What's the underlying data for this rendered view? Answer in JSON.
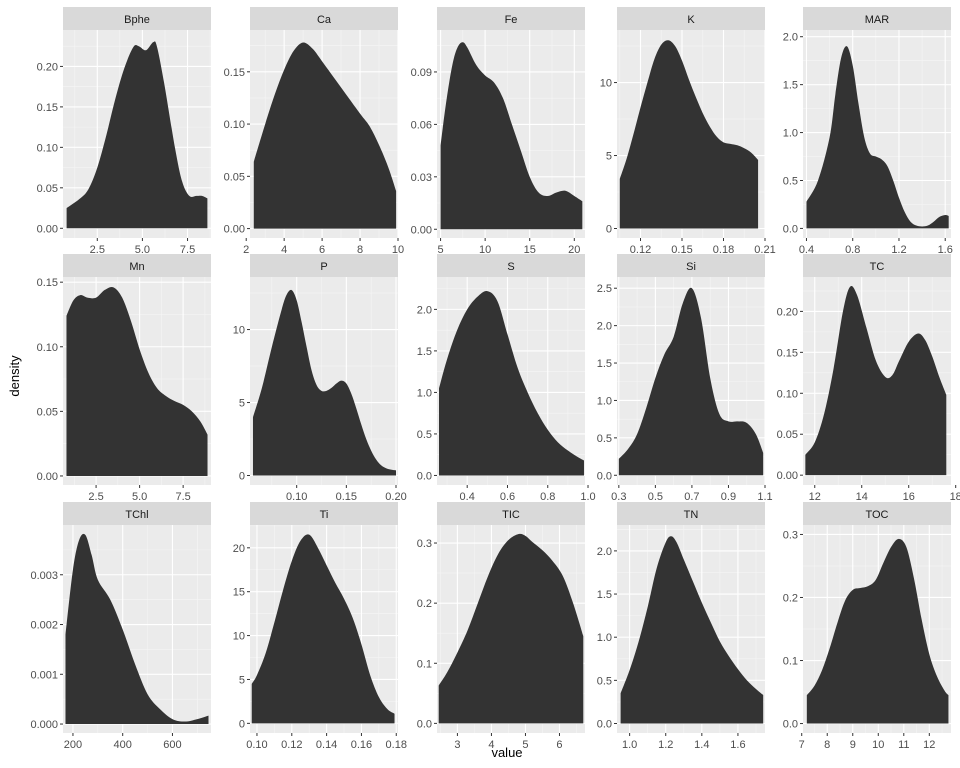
{
  "chart_data": {
    "type": "area",
    "chart_kind": "faceted density plot",
    "xlabel": "value",
    "ylabel": "density",
    "grid": true,
    "colors": {
      "panel_bg": "#ebebeb",
      "grid_major": "#ffffff",
      "grid_minor": "#f5f5f5",
      "strip_bg": "#d9d9d9",
      "fill": "#333333",
      "tick_text": "#4d4d4d",
      "tick_mark": "#333333"
    },
    "panels": [
      {
        "name": "Bphe",
        "xlim": [
          0.6,
          8.8
        ],
        "ylim": [
          -0.012,
          0.245
        ],
        "xticks": [
          2.5,
          5.0,
          7.5
        ],
        "xtick_labels": [
          "2.5",
          "5.0",
          "7.5"
        ],
        "yticks": [
          0,
          0.05,
          0.1,
          0.15,
          0.2
        ],
        "ytick_labels": [
          "0.00",
          "0.05",
          "0.10",
          "0.15",
          "0.20"
        ],
        "x": [
          0.8,
          1.5,
          2.0,
          2.5,
          3.0,
          3.5,
          4.0,
          4.5,
          4.8,
          5.2,
          5.6,
          5.8,
          6.2,
          6.8,
          7.2,
          7.6,
          8.0,
          8.3,
          8.6
        ],
        "y": [
          0.025,
          0.036,
          0.048,
          0.075,
          0.115,
          0.16,
          0.198,
          0.224,
          0.225,
          0.22,
          0.23,
          0.225,
          0.18,
          0.1,
          0.058,
          0.04,
          0.04,
          0.04,
          0.037
        ]
      },
      {
        "name": "Ca",
        "xlim": [
          2.2,
          10.0
        ],
        "ylim": [
          -0.009,
          0.19
        ],
        "xticks": [
          2,
          4,
          6,
          8,
          10
        ],
        "xtick_labels": [
          "2",
          "4",
          "6",
          "8",
          "10"
        ],
        "yticks": [
          0,
          0.05,
          0.1,
          0.15
        ],
        "ytick_labels": [
          "0.00",
          "0.05",
          "0.10",
          "0.15"
        ],
        "x": [
          2.4,
          3.0,
          3.5,
          4.0,
          4.5,
          5.0,
          5.5,
          6.0,
          7.0,
          8.0,
          8.5,
          9.0,
          9.5,
          9.9
        ],
        "y": [
          0.064,
          0.1,
          0.128,
          0.152,
          0.17,
          0.178,
          0.172,
          0.16,
          0.135,
          0.11,
          0.098,
          0.08,
          0.058,
          0.036
        ]
      },
      {
        "name": "Fe",
        "xlim": [
          4.6,
          21.2
        ],
        "ylim": [
          -0.005,
          0.114
        ],
        "xticks": [
          5,
          10,
          15,
          20
        ],
        "xtick_labels": [
          "5",
          "10",
          "15",
          "20"
        ],
        "yticks": [
          0,
          0.03,
          0.06,
          0.09
        ],
        "ytick_labels": [
          "0.00",
          "0.03",
          "0.06",
          "0.09"
        ],
        "x": [
          5.0,
          5.5,
          6.0,
          6.5,
          7.0,
          7.5,
          8.0,
          9.0,
          10.0,
          11.0,
          12.0,
          13.0,
          14.0,
          15.0,
          16.0,
          17.0,
          18.0,
          19.0,
          20.0,
          20.9
        ],
        "y": [
          0.048,
          0.068,
          0.085,
          0.098,
          0.105,
          0.107,
          0.104,
          0.094,
          0.088,
          0.084,
          0.075,
          0.06,
          0.045,
          0.03,
          0.021,
          0.019,
          0.021,
          0.022,
          0.019,
          0.016
        ]
      },
      {
        "name": "K",
        "xlim": [
          0.103,
          0.21
        ],
        "ylim": [
          -0.65,
          13.6
        ],
        "xticks": [
          0.12,
          0.15,
          0.18,
          0.21
        ],
        "xtick_labels": [
          "0.12",
          "0.15",
          "0.18",
          "0.21"
        ],
        "yticks": [
          0,
          5,
          10
        ],
        "ytick_labels": [
          "0",
          "5",
          "10"
        ],
        "x": [
          0.105,
          0.11,
          0.115,
          0.12,
          0.125,
          0.13,
          0.135,
          0.14,
          0.145,
          0.15,
          0.155,
          0.16,
          0.165,
          0.17,
          0.175,
          0.18,
          0.185,
          0.19,
          0.195,
          0.2,
          0.205
        ],
        "y": [
          3.4,
          4.8,
          6.5,
          8.3,
          10.0,
          11.6,
          12.6,
          12.9,
          12.5,
          11.5,
          10.2,
          9.0,
          7.9,
          7.0,
          6.3,
          5.9,
          5.8,
          5.7,
          5.5,
          5.2,
          4.7
        ]
      },
      {
        "name": "MAR",
        "xlim": [
          0.37,
          1.65
        ],
        "ylim": [
          -0.1,
          2.07
        ],
        "xticks": [
          0.4,
          0.8,
          1.2,
          1.6
        ],
        "xtick_labels": [
          "0.4",
          "0.8",
          "1.2",
          "1.6"
        ],
        "yticks": [
          0,
          0.5,
          1.0,
          1.5,
          2.0
        ],
        "ytick_labels": [
          "0.0",
          "0.5",
          "1.0",
          "1.5",
          "2.0"
        ],
        "x": [
          0.4,
          0.5,
          0.6,
          0.65,
          0.7,
          0.75,
          0.8,
          0.85,
          0.9,
          0.95,
          1.0,
          1.05,
          1.1,
          1.15,
          1.2,
          1.25,
          1.3,
          1.35,
          1.4,
          1.45,
          1.5,
          1.55,
          1.6,
          1.63
        ],
        "y": [
          0.28,
          0.5,
          0.95,
          1.4,
          1.78,
          1.9,
          1.7,
          1.3,
          0.95,
          0.78,
          0.75,
          0.72,
          0.65,
          0.5,
          0.32,
          0.17,
          0.07,
          0.03,
          0.02,
          0.03,
          0.07,
          0.12,
          0.14,
          0.13
        ]
      },
      {
        "name": "Mn",
        "xlim": [
          0.6,
          9.1
        ],
        "ylim": [
          -0.007,
          0.154
        ],
        "xticks": [
          2.5,
          5.0,
          7.5
        ],
        "xtick_labels": [
          "2.5",
          "5.0",
          "7.5"
        ],
        "yticks": [
          0,
          0.05,
          0.1,
          0.15
        ],
        "ytick_labels": [
          "0.00",
          "0.05",
          "0.10",
          "0.15"
        ],
        "x": [
          0.8,
          1.2,
          1.6,
          2.0,
          2.5,
          3.0,
          3.5,
          4.0,
          4.5,
          5.0,
          5.5,
          6.0,
          6.5,
          7.0,
          7.5,
          8.0,
          8.5,
          8.9
        ],
        "y": [
          0.124,
          0.136,
          0.14,
          0.138,
          0.138,
          0.144,
          0.146,
          0.138,
          0.12,
          0.098,
          0.08,
          0.068,
          0.062,
          0.058,
          0.055,
          0.05,
          0.042,
          0.032
        ]
      },
      {
        "name": "P",
        "xlim": [
          0.053,
          0.202
        ],
        "ylim": [
          -0.65,
          13.6
        ],
        "xticks": [
          0.1,
          0.15,
          0.2
        ],
        "xtick_labels": [
          "0.10",
          "0.15",
          "0.20"
        ],
        "yticks": [
          0,
          5,
          10
        ],
        "ytick_labels": [
          "0",
          "5",
          "10"
        ],
        "x": [
          0.056,
          0.065,
          0.075,
          0.085,
          0.09,
          0.095,
          0.1,
          0.105,
          0.11,
          0.115,
          0.12,
          0.125,
          0.13,
          0.135,
          0.14,
          0.145,
          0.15,
          0.155,
          0.16,
          0.165,
          0.17,
          0.175,
          0.18,
          0.185,
          0.19,
          0.195,
          0.2
        ],
        "y": [
          4.0,
          6.0,
          8.8,
          11.4,
          12.4,
          12.7,
          12.0,
          10.5,
          8.8,
          7.2,
          6.2,
          5.8,
          5.8,
          6.0,
          6.3,
          6.5,
          6.3,
          5.6,
          4.6,
          3.5,
          2.5,
          1.7,
          1.1,
          0.7,
          0.5,
          0.4,
          0.35
        ]
      },
      {
        "name": "S",
        "xlim": [
          0.25,
          0.985
        ],
        "ylim": [
          -0.115,
          2.39
        ],
        "xticks": [
          0.4,
          0.6,
          0.8,
          1.0
        ],
        "xtick_labels": [
          "0.4",
          "0.6",
          "0.8",
          "1.0"
        ],
        "yticks": [
          0,
          0.5,
          1.0,
          1.5,
          2.0
        ],
        "ytick_labels": [
          "0.0",
          "0.5",
          "1.0",
          "1.5",
          "2.0"
        ],
        "x": [
          0.26,
          0.3,
          0.35,
          0.4,
          0.45,
          0.5,
          0.55,
          0.6,
          0.65,
          0.7,
          0.75,
          0.8,
          0.85,
          0.9,
          0.95,
          0.98
        ],
        "y": [
          1.05,
          1.4,
          1.75,
          2.0,
          2.15,
          2.22,
          2.1,
          1.7,
          1.3,
          1.0,
          0.75,
          0.55,
          0.4,
          0.3,
          0.22,
          0.18
        ]
      },
      {
        "name": "Si",
        "xlim": [
          0.29,
          1.1
        ],
        "ylim": [
          -0.13,
          2.65
        ],
        "xticks": [
          0.3,
          0.5,
          0.7,
          0.9,
          1.1
        ],
        "xtick_labels": [
          "0.3",
          "0.5",
          "0.7",
          "0.9",
          "1.1"
        ],
        "yticks": [
          0,
          0.5,
          1.0,
          1.5,
          2.0,
          2.5
        ],
        "ytick_labels": [
          "0.0",
          "0.5",
          "1.0",
          "1.5",
          "2.0",
          "2.5"
        ],
        "x": [
          0.3,
          0.35,
          0.4,
          0.45,
          0.5,
          0.55,
          0.6,
          0.65,
          0.7,
          0.75,
          0.8,
          0.85,
          0.9,
          0.95,
          1.0,
          1.05,
          1.09
        ],
        "y": [
          0.22,
          0.35,
          0.55,
          0.9,
          1.3,
          1.62,
          1.85,
          2.3,
          2.5,
          2.1,
          1.3,
          0.82,
          0.72,
          0.72,
          0.7,
          0.55,
          0.3
        ]
      },
      {
        "name": "TC",
        "xlim": [
          11.5,
          17.8
        ],
        "ylim": [
          -0.012,
          0.242
        ],
        "xticks": [
          12,
          14,
          16,
          18
        ],
        "xtick_labels": [
          "12",
          "14",
          "16",
          "18"
        ],
        "yticks": [
          0,
          0.05,
          0.1,
          0.15,
          0.2
        ],
        "ytick_labels": [
          "0.00",
          "0.05",
          "0.10",
          "0.15",
          "0.20"
        ],
        "x": [
          11.6,
          12.0,
          12.4,
          12.8,
          13.2,
          13.5,
          13.8,
          14.2,
          14.6,
          15.0,
          15.3,
          15.6,
          16.0,
          16.4,
          16.7,
          17.0,
          17.3,
          17.6
        ],
        "y": [
          0.025,
          0.04,
          0.075,
          0.13,
          0.2,
          0.23,
          0.22,
          0.18,
          0.14,
          0.12,
          0.122,
          0.14,
          0.163,
          0.173,
          0.165,
          0.145,
          0.12,
          0.098
        ]
      },
      {
        "name": "TChl",
        "xlim": [
          160,
          755
        ],
        "ylim": [
          -0.00018,
          0.004
        ],
        "xticks": [
          200,
          400,
          600
        ],
        "xtick_labels": [
          "200",
          "400",
          "600"
        ],
        "yticks": [
          0,
          0.001,
          0.002,
          0.003
        ],
        "ytick_labels": [
          "0.000",
          "0.001",
          "0.002",
          "0.003"
        ],
        "x": [
          170,
          200,
          225,
          250,
          275,
          300,
          350,
          400,
          450,
          500,
          550,
          600,
          650,
          700,
          745
        ],
        "y": [
          0.0018,
          0.0031,
          0.0037,
          0.0038,
          0.0034,
          0.0029,
          0.0025,
          0.0019,
          0.0012,
          0.0006,
          0.0003,
          0.0001,
          5e-05,
          0.0001,
          0.00017
        ]
      },
      {
        "name": "Ti",
        "xlim": [
          0.096,
          0.181
        ],
        "ylim": [
          -1.1,
          22.6
        ],
        "xticks": [
          0.1,
          0.12,
          0.14,
          0.16,
          0.18
        ],
        "xtick_labels": [
          "0.10",
          "0.12",
          "0.14",
          "0.16",
          "0.18"
        ],
        "yticks": [
          0,
          5,
          10,
          15,
          20
        ],
        "ytick_labels": [
          "0",
          "5",
          "10",
          "15",
          "20"
        ],
        "x": [
          0.097,
          0.1,
          0.105,
          0.11,
          0.115,
          0.12,
          0.125,
          0.13,
          0.135,
          0.14,
          0.145,
          0.15,
          0.155,
          0.16,
          0.165,
          0.17,
          0.175,
          0.179
        ],
        "y": [
          4.5,
          5.5,
          8.0,
          11.5,
          15.2,
          18.5,
          20.8,
          21.5,
          20.0,
          18.0,
          16.0,
          14.2,
          12.0,
          9.0,
          5.5,
          3.0,
          1.6,
          1.1
        ]
      },
      {
        "name": "TIC",
        "xlim": [
          2.4,
          6.75
        ],
        "ylim": [
          -0.016,
          0.33
        ],
        "xticks": [
          3,
          4,
          5,
          6
        ],
        "xtick_labels": [
          "3",
          "4",
          "5",
          "6"
        ],
        "yticks": [
          0,
          0.1,
          0.2,
          0.3
        ],
        "ytick_labels": [
          "0.0",
          "0.1",
          "0.2",
          "0.3"
        ],
        "x": [
          2.45,
          2.7,
          3.0,
          3.3,
          3.6,
          3.9,
          4.2,
          4.5,
          4.8,
          5.0,
          5.2,
          5.5,
          5.8,
          6.1,
          6.4,
          6.7
        ],
        "y": [
          0.063,
          0.085,
          0.118,
          0.155,
          0.2,
          0.245,
          0.282,
          0.305,
          0.315,
          0.312,
          0.302,
          0.288,
          0.27,
          0.245,
          0.2,
          0.145
        ]
      },
      {
        "name": "TN",
        "xlim": [
          0.93,
          1.75
        ],
        "ylim": [
          -0.11,
          2.3
        ],
        "xticks": [
          1.0,
          1.2,
          1.4,
          1.6
        ],
        "xtick_labels": [
          "1.0",
          "1.2",
          "1.4",
          "1.6"
        ],
        "yticks": [
          0,
          0.5,
          1.0,
          1.5,
          2.0
        ],
        "ytick_labels": [
          "0.0",
          "0.5",
          "1.0",
          "1.5",
          "2.0"
        ],
        "x": [
          0.95,
          1.0,
          1.05,
          1.1,
          1.15,
          1.2,
          1.23,
          1.26,
          1.3,
          1.35,
          1.4,
          1.45,
          1.5,
          1.55,
          1.6,
          1.65,
          1.7,
          1.74
        ],
        "y": [
          0.35,
          0.62,
          0.95,
          1.35,
          1.8,
          2.1,
          2.17,
          2.1,
          1.9,
          1.65,
          1.4,
          1.17,
          0.95,
          0.78,
          0.63,
          0.5,
          0.4,
          0.33
        ]
      },
      {
        "name": "TOC",
        "xlim": [
          7.05,
          12.85
        ],
        "ylim": [
          -0.015,
          0.315
        ],
        "xticks": [
          7,
          8,
          9,
          10,
          11,
          12
        ],
        "xtick_labels": [
          "7",
          "8",
          "9",
          "10",
          "11",
          "12"
        ],
        "yticks": [
          0,
          0.1,
          0.2,
          0.3
        ],
        "ytick_labels": [
          "0.0",
          "0.1",
          "0.2",
          "0.3"
        ],
        "x": [
          7.2,
          7.5,
          7.8,
          8.1,
          8.4,
          8.7,
          9.0,
          9.3,
          9.6,
          9.9,
          10.2,
          10.5,
          10.8,
          11.1,
          11.4,
          11.7,
          12.0,
          12.3,
          12.6,
          12.75
        ],
        "y": [
          0.045,
          0.06,
          0.085,
          0.12,
          0.16,
          0.195,
          0.212,
          0.215,
          0.218,
          0.228,
          0.255,
          0.28,
          0.293,
          0.28,
          0.23,
          0.165,
          0.11,
          0.075,
          0.052,
          0.045
        ]
      }
    ]
  }
}
